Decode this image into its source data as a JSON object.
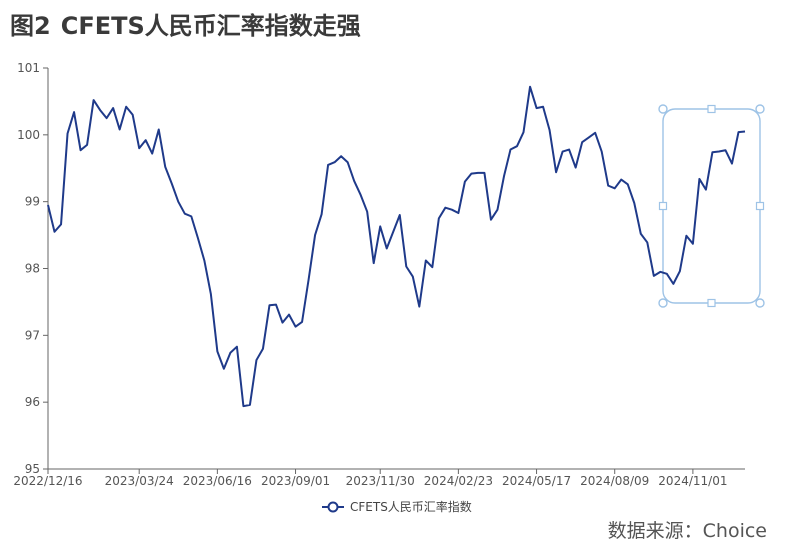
{
  "figure": {
    "label": "图2",
    "title": "CFETS人民币汇率指数走强",
    "source": "数据来源：Choice"
  },
  "colors": {
    "series": "#1f3a8a",
    "axis": "#666666",
    "highlight": "#9ec3e6"
  },
  "chart_data": {
    "type": "line",
    "title": "CFETS人民币汇率指数走强",
    "xlabel": "",
    "ylabel": "",
    "ylim": [
      95,
      101
    ],
    "y_ticks": [
      95,
      96,
      97,
      98,
      99,
      100,
      101
    ],
    "x_ticks": [
      "2022/12/16",
      "2023/03/24",
      "2023/06/16",
      "2023/09/01",
      "2023/11/30",
      "2024/02/23",
      "2024/05/17",
      "2024/08/09",
      "2024/11/01"
    ],
    "grid": false,
    "legend": "bottom-center",
    "series": [
      {
        "name": "CFETS人民币汇率指数",
        "values": [
          98.95,
          98.55,
          98.66,
          100.02,
          100.34,
          99.77,
          99.85,
          100.52,
          100.37,
          100.25,
          100.4,
          100.08,
          100.42,
          100.3,
          99.8,
          99.92,
          99.72,
          100.08,
          99.52,
          99.27,
          99.0,
          98.82,
          98.78,
          98.46,
          98.12,
          97.62,
          96.76,
          96.5,
          96.74,
          96.83,
          95.94,
          95.96,
          96.63,
          96.8,
          97.45,
          97.46,
          97.19,
          97.31,
          97.13,
          97.2,
          97.83,
          98.5,
          98.81,
          99.55,
          99.59,
          99.68,
          99.59,
          99.31,
          99.1,
          98.85,
          98.08,
          98.63,
          98.3,
          98.55,
          98.8,
          98.03,
          97.88,
          97.43,
          98.12,
          98.02,
          98.75,
          98.91,
          98.88,
          98.83,
          99.3,
          99.42,
          99.43,
          99.43,
          98.73,
          98.88,
          99.38,
          99.78,
          99.83,
          100.04,
          100.72,
          100.4,
          100.42,
          100.07,
          99.44,
          99.75,
          99.78,
          99.51,
          99.89,
          99.96,
          100.03,
          99.75,
          99.24,
          99.2,
          99.33,
          99.26,
          98.98,
          98.52,
          98.39,
          97.89,
          97.95,
          97.92,
          97.77,
          97.96,
          98.49,
          98.37,
          99.34,
          99.18,
          99.74,
          99.75,
          99.77,
          99.57,
          100.04,
          100.05
        ]
      }
    ]
  }
}
